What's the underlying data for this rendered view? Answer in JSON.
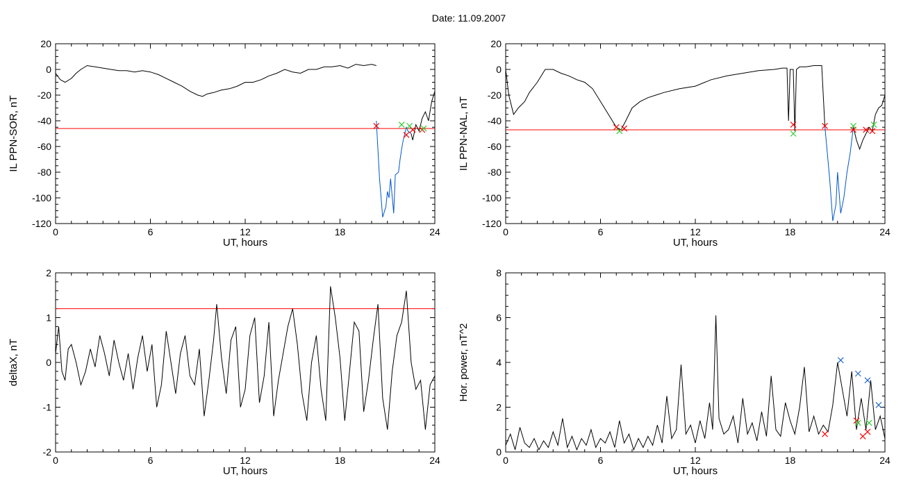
{
  "figure": {
    "title": "Date:  11.09.2007"
  },
  "colors": {
    "trace": "#000000",
    "threshold": "#ff0000",
    "highlight": "#0055cc",
    "marker_red": "#ff0000",
    "marker_green": "#33cc33",
    "marker_blue": "#2266cc",
    "frame": "#000000"
  },
  "chart_data": [
    {
      "id": "ppn-sor",
      "type": "line",
      "xlabel": "UT, hours",
      "ylabel": "IL PPN-SOR, nT",
      "xlim": [
        0,
        24
      ],
      "ylim": [
        -120,
        20
      ],
      "xticks": [
        0,
        6,
        12,
        18,
        24
      ],
      "yticks": [
        -120,
        -100,
        -80,
        -60,
        -40,
        -20,
        0,
        20
      ],
      "threshold": -46,
      "series": [
        {
          "values_x": [
            0,
            0.3,
            0.6,
            1.0,
            1.3,
            1.6,
            2.0,
            2.5,
            3.0,
            3.5,
            4.0,
            4.5,
            5.0,
            5.5,
            6.0,
            6.5,
            7.0,
            7.5,
            8.0,
            8.5,
            9.0,
            9.3,
            9.6,
            10.0,
            10.5,
            11.0,
            11.5,
            12.0,
            12.5,
            13.0,
            13.5,
            14.0,
            14.5,
            15.0,
            15.5,
            16.0,
            16.5,
            17.0,
            17.5,
            18.0,
            18.5,
            19.0,
            19.5,
            20.0,
            20.3
          ],
          "values_y": [
            -3,
            -8,
            -10,
            -7,
            -3,
            0,
            3,
            2,
            1,
            0,
            -1,
            -1,
            -2,
            -1,
            -2,
            -4,
            -7,
            -10,
            -13,
            -17,
            -20,
            -21,
            -19,
            -18,
            -16,
            -15,
            -13,
            -10,
            -10,
            -8,
            -5,
            -3,
            0,
            -2,
            -3,
            0,
            0,
            2,
            2,
            3,
            1,
            4,
            3,
            4,
            3
          ]
        },
        {
          "values_x": [
            20.3,
            20.5,
            20.7,
            20.9,
            21.0,
            21.1,
            21.2,
            21.4,
            21.5,
            21.7,
            21.8,
            21.9,
            22.0,
            22.2,
            22.3,
            22.5
          ],
          "values_y": [
            -40,
            -85,
            -115,
            -107,
            -95,
            -100,
            -85,
            -112,
            -82,
            -80,
            -70,
            -62,
            -55,
            -45,
            -48,
            -50
          ]
        },
        {
          "values_x": [
            22.5,
            22.6,
            22.8,
            23.0,
            23.2,
            23.4,
            23.6,
            23.8,
            24.0
          ],
          "values_y": [
            -50,
            -55,
            -43,
            -48,
            -38,
            -33,
            -40,
            -25,
            -17
          ]
        }
      ],
      "markers_red": [
        [
          20.3,
          -44
        ],
        [
          22.2,
          -51
        ],
        [
          22.6,
          -47
        ],
        [
          23.2,
          -47
        ]
      ],
      "markers_green": [
        [
          21.9,
          -43
        ],
        [
          22.4,
          -44
        ],
        [
          23.3,
          -46
        ]
      ]
    },
    {
      "id": "ppn-nal",
      "type": "line",
      "xlabel": "UT, hours",
      "ylabel": "IL PPN-NAL, nT",
      "xlim": [
        0,
        24
      ],
      "ylim": [
        -120,
        20
      ],
      "xticks": [
        0,
        6,
        12,
        18,
        24
      ],
      "yticks": [
        -120,
        -100,
        -80,
        -60,
        -40,
        -20,
        0,
        20
      ],
      "threshold": -47,
      "series": [
        {
          "values_x": [
            0,
            0.2,
            0.5,
            0.8,
            1.2,
            1.5,
            2.0,
            2.5,
            3.0,
            3.5,
            4.0,
            4.5,
            5.0,
            5.5,
            6.0,
            6.5,
            7.0,
            7.3,
            7.6,
            8.0,
            8.5,
            9.0,
            9.5,
            10.0,
            11.0,
            12.0,
            13.0,
            14.0,
            15.0,
            16.0,
            17.0,
            17.5,
            17.8,
            17.9,
            18.0,
            18.2,
            18.3,
            18.4,
            18.6,
            19.0,
            19.5,
            20.0,
            20.2
          ],
          "values_y": [
            0,
            -20,
            -35,
            -30,
            -25,
            -18,
            -10,
            0,
            0,
            -3,
            -5,
            -8,
            -10,
            -15,
            -25,
            -35,
            -45,
            -47,
            -40,
            -30,
            -25,
            -22,
            -20,
            -18,
            -15,
            -13,
            -8,
            -5,
            -3,
            -1,
            0,
            1,
            1,
            -40,
            0,
            0,
            -48,
            0,
            2,
            2,
            3,
            3,
            -44
          ]
        },
        {
          "values_x": [
            20.2,
            20.5,
            20.7,
            20.9,
            21.0,
            21.2,
            21.4,
            21.6,
            21.8,
            22.0
          ],
          "values_y": [
            -44,
            -85,
            -118,
            -105,
            -80,
            -112,
            -100,
            -80,
            -65,
            -45
          ]
        },
        {
          "values_x": [
            22.0,
            22.2,
            22.4,
            22.6,
            22.8,
            23.0,
            23.2,
            23.4,
            23.6,
            23.8,
            24.0
          ],
          "values_y": [
            -45,
            -55,
            -62,
            -55,
            -50,
            -45,
            -48,
            -35,
            -30,
            -28,
            -20
          ]
        }
      ],
      "markers_red": [
        [
          7.0,
          -45
        ],
        [
          7.5,
          -46
        ],
        [
          18.2,
          -43
        ],
        [
          20.2,
          -44
        ],
        [
          22.0,
          -47
        ],
        [
          22.8,
          -47
        ],
        [
          23.2,
          -48
        ]
      ],
      "markers_green": [
        [
          7.2,
          -48
        ],
        [
          18.2,
          -50
        ],
        [
          22.0,
          -44
        ],
        [
          23.3,
          -43
        ]
      ]
    },
    {
      "id": "deltax",
      "type": "line",
      "xlabel": "UT, hours",
      "ylabel": "deltaX, nT",
      "xlim": [
        0,
        24
      ],
      "ylim": [
        -2,
        2
      ],
      "xticks": [
        0,
        6,
        12,
        18,
        24
      ],
      "yticks": [
        -2,
        -1,
        0,
        1,
        2
      ],
      "threshold": 1.2,
      "series": [
        {
          "values_x": [
            0,
            0.2,
            0.4,
            0.6,
            0.8,
            1.0,
            1.3,
            1.6,
            1.9,
            2.2,
            2.5,
            2.8,
            3.1,
            3.4,
            3.7,
            4.0,
            4.3,
            4.6,
            4.9,
            5.2,
            5.5,
            5.8,
            6.1,
            6.4,
            6.7,
            7.0,
            7.3,
            7.6,
            7.9,
            8.2,
            8.5,
            8.8,
            9.1,
            9.4,
            9.7,
            10.0,
            10.2,
            10.5,
            10.8,
            11.1,
            11.4,
            11.7,
            12.0,
            12.3,
            12.6,
            12.9,
            13.2,
            13.5,
            13.8,
            14.1,
            14.4,
            14.7,
            15.0,
            15.3,
            15.6,
            15.9,
            16.2,
            16.5,
            16.8,
            17.1,
            17.4,
            17.7,
            18.0,
            18.3,
            18.6,
            18.9,
            19.2,
            19.5,
            19.8,
            20.1,
            20.4,
            20.7,
            21.0,
            21.3,
            21.6,
            21.9,
            22.2,
            22.5,
            22.8,
            23.1,
            23.4,
            23.7,
            24.0
          ],
          "values_y": [
            0.2,
            0.8,
            -0.2,
            -0.4,
            0.3,
            0.4,
            0.0,
            -0.5,
            -0.2,
            0.3,
            -0.1,
            0.6,
            0.2,
            -0.3,
            0.5,
            0.0,
            -0.4,
            0.2,
            -0.6,
            0.1,
            0.6,
            -0.2,
            0.4,
            -1.0,
            -0.5,
            0.7,
            0.0,
            -0.7,
            0.2,
            0.6,
            -0.3,
            -0.5,
            0.3,
            -1.2,
            -0.4,
            0.5,
            1.3,
            0.1,
            -0.7,
            0.5,
            0.8,
            -1.0,
            -0.6,
            0.6,
            1.0,
            -0.9,
            -0.3,
            0.9,
            -1.2,
            -0.4,
            0.2,
            0.8,
            1.2,
            0.4,
            -0.7,
            -1.3,
            0.0,
            0.6,
            -0.6,
            -1.3,
            1.7,
            1.0,
            0.1,
            -1.3,
            -0.2,
            0.9,
            0.7,
            -1.1,
            -0.4,
            0.5,
            1.3,
            -0.8,
            -1.5,
            -0.2,
            0.6,
            0.9,
            1.6,
            0.0,
            -0.6,
            -0.4,
            -1.5,
            -0.5,
            -0.3
          ]
        }
      ],
      "markers_red": [],
      "markers_green": []
    },
    {
      "id": "hor-power",
      "type": "line",
      "xlabel": "UT, hours",
      "ylabel": "Hor. power, nT^2",
      "xlim": [
        0,
        24
      ],
      "ylim": [
        0,
        8
      ],
      "xticks": [
        0,
        6,
        12,
        18,
        24
      ],
      "yticks": [
        0,
        2,
        4,
        6,
        8
      ],
      "threshold": null,
      "series": [
        {
          "values_x": [
            0,
            0.3,
            0.6,
            0.9,
            1.2,
            1.5,
            1.8,
            2.1,
            2.4,
            2.7,
            3.0,
            3.3,
            3.6,
            3.9,
            4.2,
            4.5,
            4.8,
            5.1,
            5.4,
            5.7,
            6.0,
            6.3,
            6.6,
            6.9,
            7.2,
            7.5,
            7.8,
            8.1,
            8.4,
            8.7,
            9.0,
            9.3,
            9.6,
            9.9,
            10.2,
            10.5,
            10.8,
            11.1,
            11.4,
            11.7,
            12.0,
            12.3,
            12.6,
            12.9,
            13.1,
            13.3,
            13.5,
            13.8,
            14.1,
            14.4,
            14.7,
            15.0,
            15.3,
            15.6,
            15.9,
            16.2,
            16.5,
            16.8,
            17.1,
            17.4,
            17.7,
            18.0,
            18.3,
            18.6,
            18.9,
            19.2,
            19.5,
            19.8,
            20.1,
            20.4,
            20.7,
            21.0,
            21.3,
            21.6,
            21.9,
            22.2,
            22.5,
            22.8,
            23.1,
            23.4,
            23.7,
            24.0
          ],
          "values_y": [
            0.3,
            0.8,
            0.1,
            1.1,
            0.4,
            0.2,
            0.6,
            0.1,
            0.5,
            0.2,
            0.9,
            0.3,
            1.5,
            0.2,
            0.7,
            0.1,
            0.6,
            0.3,
            1.0,
            0.2,
            0.6,
            0.4,
            0.9,
            0.2,
            1.4,
            0.4,
            0.8,
            0.1,
            0.6,
            0.2,
            0.7,
            0.3,
            1.2,
            0.4,
            2.5,
            0.6,
            1.0,
            3.9,
            0.8,
            1.2,
            0.4,
            1.4,
            0.6,
            2.2,
            1.0,
            6.1,
            1.5,
            0.8,
            1.0,
            1.6,
            0.4,
            2.4,
            0.8,
            1.3,
            0.5,
            1.8,
            0.7,
            3.4,
            1.0,
            0.7,
            2.2,
            1.4,
            0.8,
            2.0,
            3.8,
            0.9,
            1.6,
            0.8,
            1.2,
            0.9,
            2.1,
            4.0,
            2.8,
            1.6,
            3.6,
            1.0,
            2.4,
            1.0,
            3.2,
            1.0,
            1.6,
            0.6
          ]
        }
      ],
      "markers_red": [
        [
          20.2,
          0.8
        ],
        [
          22.2,
          1.4
        ],
        [
          22.6,
          0.7
        ],
        [
          22.9,
          0.9
        ]
      ],
      "markers_green": [
        [
          22.3,
          1.3
        ],
        [
          23.0,
          1.3
        ]
      ],
      "markers_blue": [
        [
          21.2,
          4.1
        ],
        [
          22.3,
          3.5
        ],
        [
          22.9,
          3.2
        ],
        [
          23.6,
          2.1
        ]
      ]
    }
  ]
}
